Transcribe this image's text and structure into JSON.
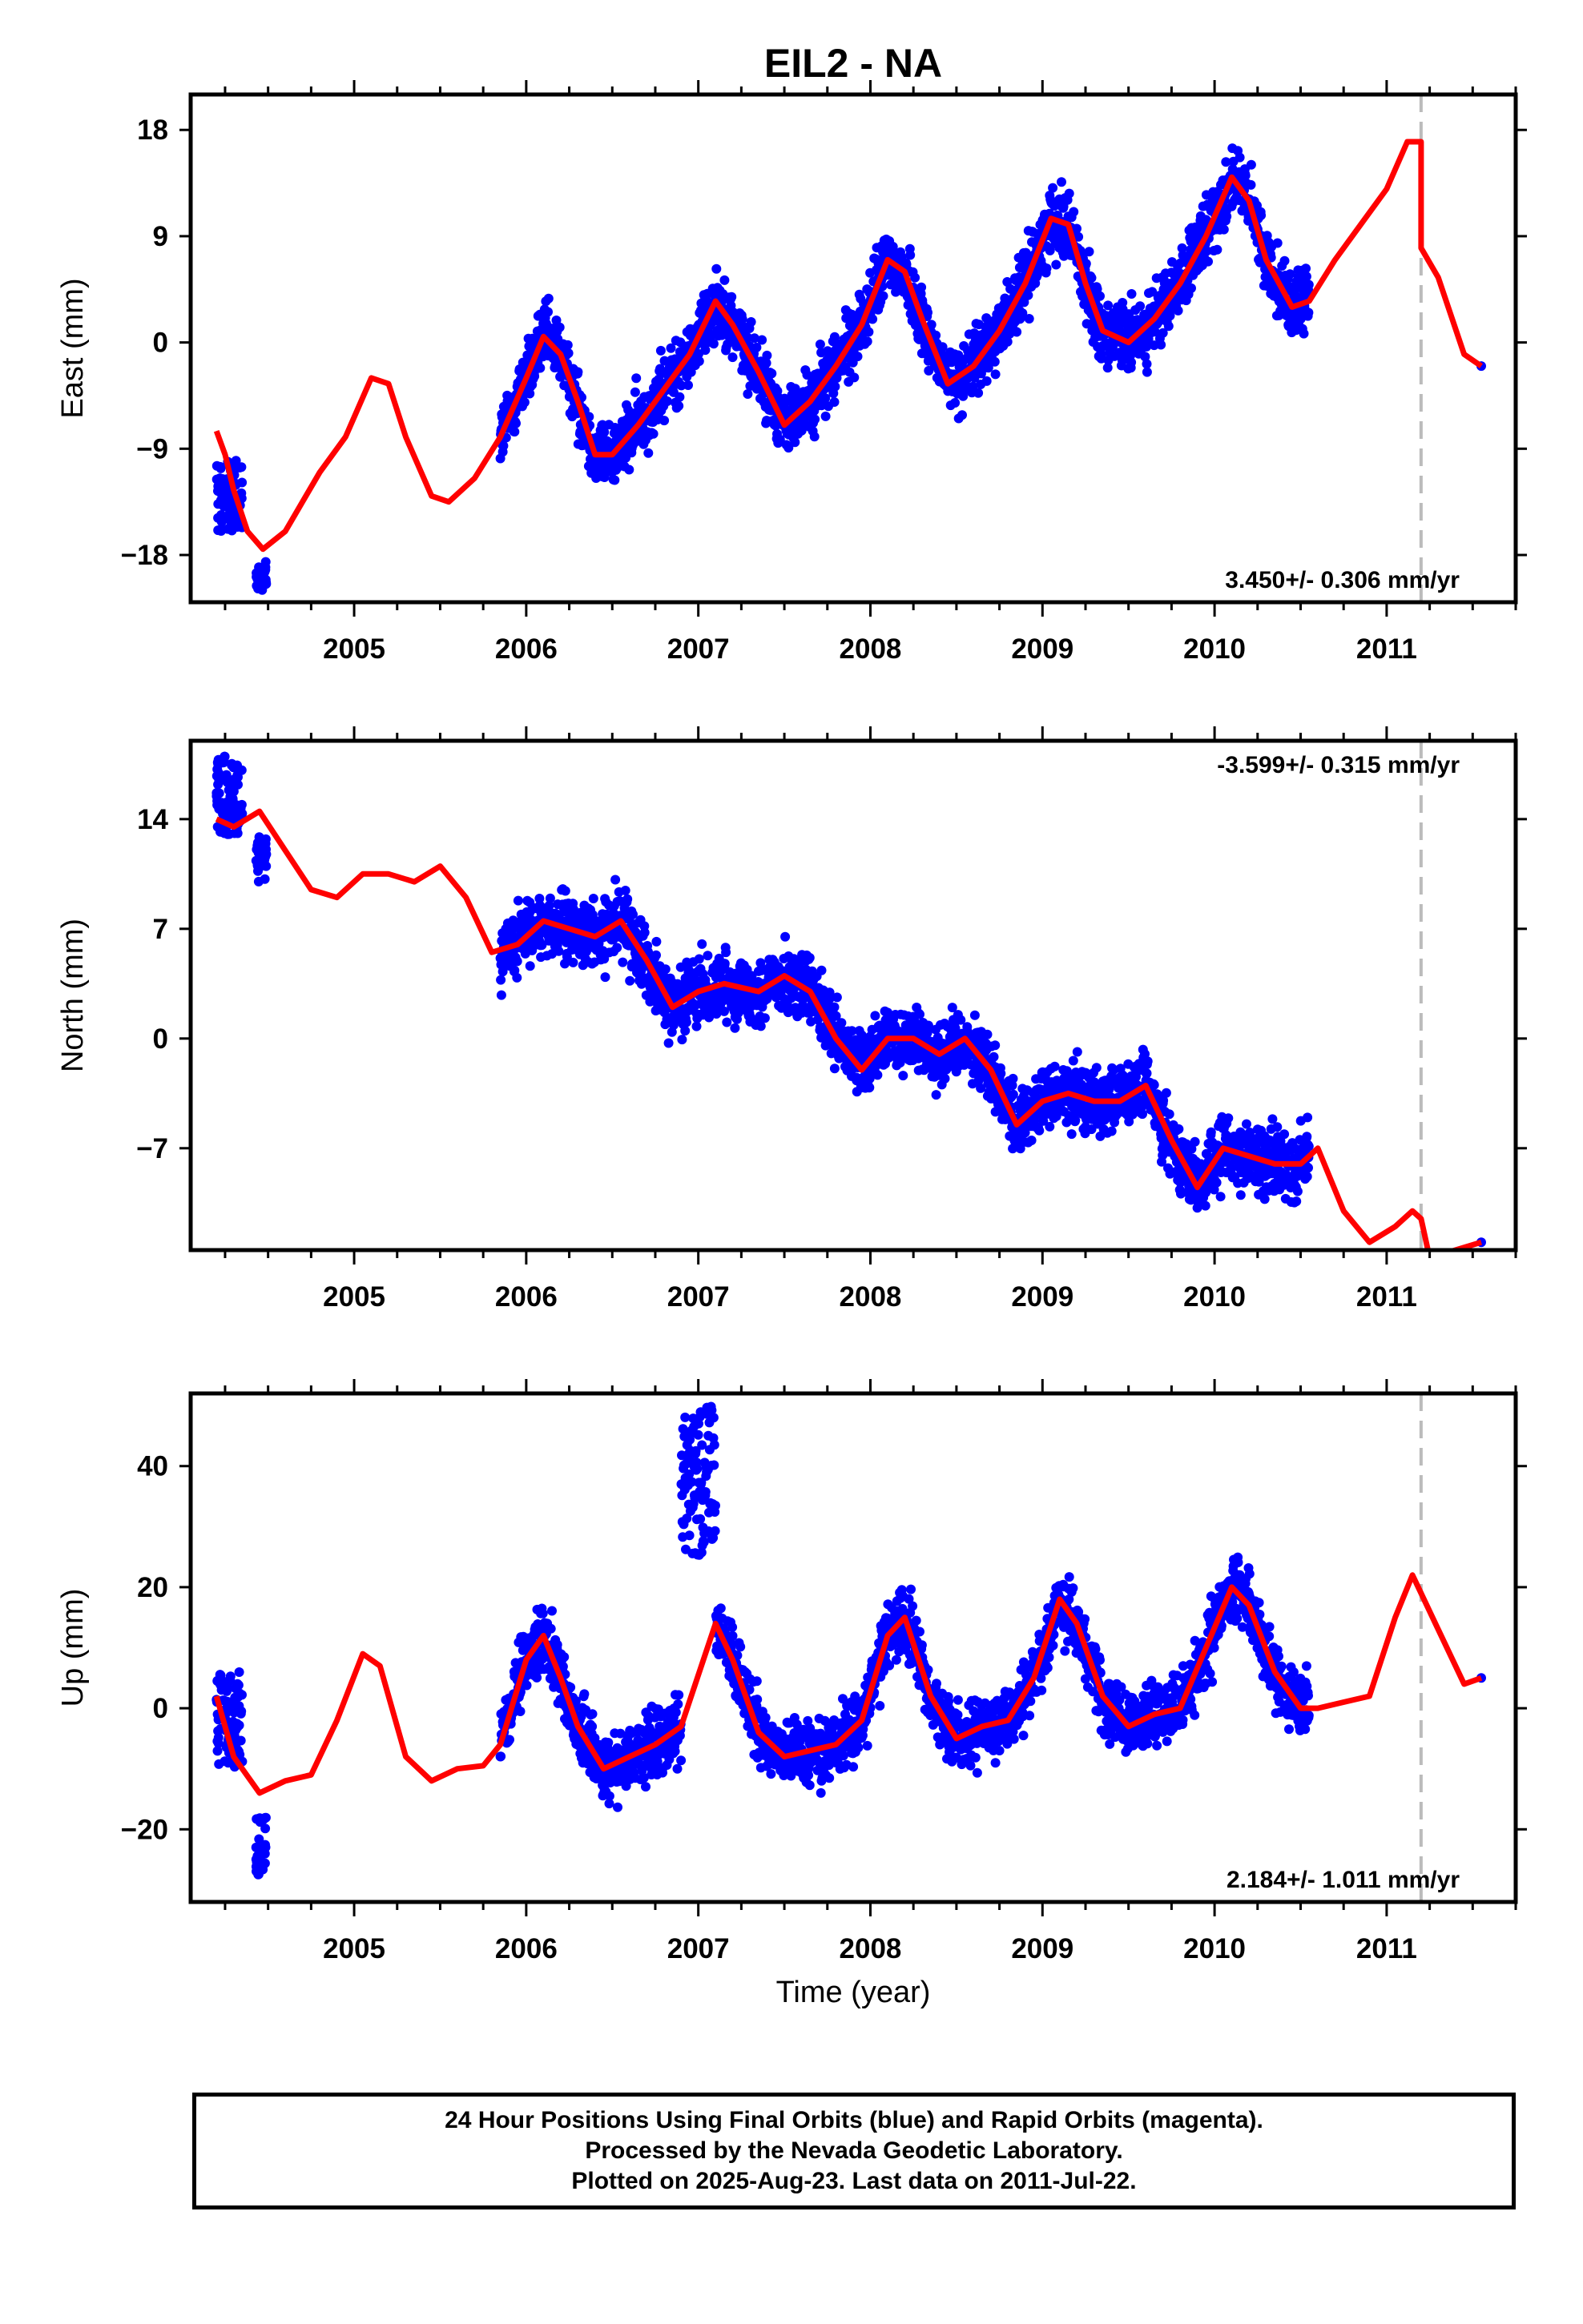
{
  "chart_data": [
    {
      "type": "scatter",
      "title": "EIL2 - NA",
      "xlabel": "",
      "ylabel": "East (mm)",
      "xlim": [
        2004.05,
        2011.75
      ],
      "ylim": [
        -22,
        21
      ],
      "yticks": [
        -18,
        -9,
        0,
        9,
        18
      ],
      "xticks": [
        2005,
        2006,
        2007,
        2008,
        2009,
        2010,
        2011
      ],
      "rate": "3.450+/- 0.306 mm/yr",
      "rate_position": "bottom-right",
      "vline_x": 2011.2,
      "colors": {
        "points": "#0000ff",
        "model": "#ff0000",
        "vline": "#bbbbbb"
      },
      "data_segments": [
        [
          2004.2,
          2004.48
        ],
        [
          2005.85,
          2010.55
        ],
        [
          2011.55,
          2011.56
        ]
      ],
      "model_curve": {
        "x": [
          2004.2,
          2004.25,
          2004.3,
          2004.38,
          2004.47,
          2004.6,
          2004.8,
          2004.95,
          2005.1,
          2005.2,
          2005.3,
          2005.45,
          2005.55,
          2005.7,
          2005.85,
          2006.0,
          2006.1,
          2006.2,
          2006.3,
          2006.4,
          2006.5,
          2006.65,
          2006.8,
          2006.95,
          2007.1,
          2007.2,
          2007.35,
          2007.5,
          2007.65,
          2007.8,
          2007.95,
          2008.1,
          2008.2,
          2008.3,
          2008.45,
          2008.6,
          2008.75,
          2008.9,
          2009.05,
          2009.15,
          2009.25,
          2009.35,
          2009.5,
          2009.65,
          2009.8,
          2009.95,
          2010.1,
          2010.2,
          2010.3,
          2010.45,
          2010.55,
          2010.7,
          2010.85,
          2011.0,
          2011.12,
          2011.2,
          2011.2,
          2011.3,
          2011.45,
          2011.55
        ],
        "y": [
          -7.5,
          -9.5,
          -12.5,
          -16,
          -17.5,
          -16,
          -11,
          -8,
          -3,
          -3.5,
          -8,
          -13,
          -13.5,
          -11.5,
          -8,
          -3,
          0.5,
          -1,
          -5,
          -9.5,
          -9.5,
          -7,
          -4,
          -1,
          3.5,
          1.5,
          -2.5,
          -7,
          -5,
          -2,
          1.5,
          7,
          6,
          2,
          -3.5,
          -2,
          1,
          5,
          10.5,
          10,
          5,
          1,
          0,
          2,
          5,
          9,
          14,
          12,
          7,
          3,
          3.5,
          7,
          10,
          13,
          17,
          17,
          8,
          5.5,
          -1,
          -2
        ]
      },
      "points_count": 2400,
      "points_note": "generated",
      "extras": {
        "cluster_2004": [
          -16,
          -10
        ],
        "dip_2004.47": [
          -21,
          -18.5
        ]
      }
    },
    {
      "type": "scatter",
      "title": "",
      "xlabel": "",
      "ylabel": "North (mm)",
      "xlim": [
        2004.05,
        2011.75
      ],
      "ylim": [
        -13.5,
        19
      ],
      "yticks": [
        -7,
        0,
        7,
        14
      ],
      "xticks": [
        2005,
        2006,
        2007,
        2008,
        2009,
        2010,
        2011
      ],
      "rate": "-3.599+/- 0.315 mm/yr",
      "rate_position": "top-right",
      "vline_x": 2011.2,
      "colors": {
        "points": "#0000ff",
        "model": "#ff0000",
        "vline": "#bbbbbb"
      },
      "data_segments": [
        [
          2004.2,
          2004.48
        ],
        [
          2005.85,
          2010.55
        ],
        [
          2011.55,
          2011.56
        ]
      ],
      "model_curve": {
        "x": [
          2004.2,
          2004.3,
          2004.45,
          2004.6,
          2004.75,
          2004.9,
          2005.05,
          2005.2,
          2005.35,
          2005.5,
          2005.65,
          2005.8,
          2005.95,
          2006.1,
          2006.25,
          2006.4,
          2006.55,
          2006.7,
          2006.85,
          2007.0,
          2007.15,
          2007.35,
          2007.5,
          2007.65,
          2007.8,
          2007.95,
          2008.1,
          2008.25,
          2008.4,
          2008.55,
          2008.7,
          2008.85,
          2009.0,
          2009.15,
          2009.3,
          2009.45,
          2009.6,
          2009.75,
          2009.9,
          2010.05,
          2010.2,
          2010.35,
          2010.5,
          2010.6,
          2010.75,
          2010.9,
          2011.05,
          2011.15,
          2011.2,
          2011.25,
          2011.4,
          2011.55
        ],
        "y": [
          14,
          13.5,
          14.5,
          12,
          9.5,
          9,
          10.5,
          10.5,
          10,
          11,
          9,
          5.5,
          6,
          7.5,
          7,
          6.5,
          7.5,
          5,
          2,
          3,
          3.5,
          3,
          4,
          3,
          0,
          -2,
          0,
          0,
          -1,
          0,
          -2,
          -5.5,
          -4,
          -3.5,
          -4,
          -4,
          -3,
          -6.5,
          -9.5,
          -7,
          -7.5,
          -8,
          -8,
          -7,
          -11,
          -13,
          -12,
          -11,
          -11.5,
          -14,
          -13.5,
          -13
        ]
      },
      "points_count": 2400,
      "points_note": "generated",
      "extras": {
        "cluster_2004": [
          13,
          18
        ],
        "dip_2004.47": [
          10,
          13
        ]
      }
    },
    {
      "type": "scatter",
      "title": "",
      "xlabel": "Time (year)",
      "ylabel": "Up (mm)",
      "xlim": [
        2004.05,
        2011.75
      ],
      "ylim": [
        -32,
        52
      ],
      "yticks": [
        -20,
        0,
        20,
        40
      ],
      "xticks": [
        2005,
        2006,
        2007,
        2008,
        2009,
        2010,
        2011
      ],
      "rate": "2.184+/- 1.011 mm/yr",
      "rate_position": "bottom-right",
      "vline_x": 2011.2,
      "colors": {
        "points": "#0000ff",
        "model": "#ff0000",
        "vline": "#bbbbbb"
      },
      "data_segments": [
        [
          2004.2,
          2004.48
        ],
        [
          2005.85,
          2010.55
        ],
        [
          2011.55,
          2011.56
        ]
      ],
      "model_curve": {
        "x": [
          2004.2,
          2004.3,
          2004.45,
          2004.6,
          2004.75,
          2004.9,
          2005.05,
          2005.15,
          2005.3,
          2005.45,
          2005.6,
          2005.75,
          2005.85,
          2006.0,
          2006.1,
          2006.2,
          2006.3,
          2006.45,
          2006.6,
          2006.75,
          2006.9,
          2007.1,
          2007.2,
          2007.35,
          2007.5,
          2007.65,
          2007.8,
          2007.95,
          2008.1,
          2008.2,
          2008.35,
          2008.5,
          2008.65,
          2008.8,
          2008.95,
          2009.1,
          2009.2,
          2009.35,
          2009.5,
          2009.65,
          2009.8,
          2009.95,
          2010.1,
          2010.2,
          2010.35,
          2010.5,
          2010.6,
          2010.75,
          2010.9,
          2011.05,
          2011.15,
          2011.2,
          2011.3,
          2011.45,
          2011.55
        ],
        "y": [
          2,
          -8,
          -14,
          -12,
          -11,
          -2,
          9,
          7,
          -8,
          -12,
          -10,
          -9.5,
          -6,
          8,
          12,
          5,
          -3,
          -10,
          -8,
          -6,
          -3,
          14,
          8,
          -4,
          -8,
          -7,
          -6,
          -2,
          12,
          15,
          2,
          -5,
          -3,
          -2,
          5,
          18,
          14,
          2,
          -3,
          -1,
          0,
          10,
          20,
          17,
          6,
          0,
          0,
          1,
          2,
          15,
          22,
          19,
          13,
          4,
          5
        ]
      },
      "points_count": 2400,
      "points_note": "generated",
      "extras": {
        "cluster_2004": [
          -10,
          6
        ],
        "dip_2004.47": [
          -30,
          -18
        ],
        "spike_2007": [
          25,
          50
        ]
      }
    }
  ],
  "footer": {
    "line1": "24 Hour Positions Using Final Orbits (blue) and Rapid Orbits (magenta).",
    "line2": "Processed by the Nevada Geodetic Laboratory.",
    "line3": "Plotted on 2025-Aug-23. Last data on 2011-Jul-22."
  }
}
